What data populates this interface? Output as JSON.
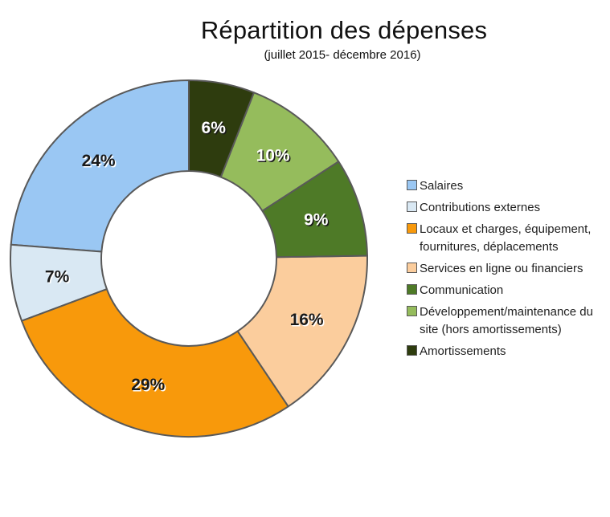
{
  "chart_data": {
    "type": "pie",
    "subtype": "donut",
    "title": "Répartition des dépenses",
    "subtitle": "(juillet 2015- décembre 2016)",
    "unit": "%",
    "direction": "counterclockwise",
    "start_angle_deg": 0,
    "legend_position": "right",
    "grid": false,
    "categories": [
      "Salaires",
      "Contributions externes",
      "Locaux et charges, équipement, fournitures, déplacements",
      "Services en ligne ou financiers",
      "Communication",
      "Développement/maintenance du site (hors amortissements)",
      "Amortissements"
    ],
    "values": [
      24,
      7,
      29,
      16,
      9,
      10,
      6
    ],
    "labels": [
      "24%",
      "7%",
      "29%",
      "16%",
      "9%",
      "10%",
      "6%"
    ],
    "slice_colors": [
      "#9AC7F3",
      "#D9E8F3",
      "#F8990B",
      "#FBCD9D",
      "#4E7A27",
      "#95BC5C",
      "#2E3C0E"
    ],
    "label_colors": [
      "#1a1a1a",
      "#1a1a1a",
      "#1a1a1a",
      "#1a1a1a",
      "#ffffff",
      "#ffffff",
      "#ffffff"
    ],
    "label_shadow_colors": [
      "#ffffff",
      "#ffffff",
      "#ffffff",
      "#ffffff",
      "#1a1a1a",
      "#1a1a1a",
      "#1a1a1a"
    ],
    "stroke_color": "#595959",
    "hole_fill": "#ffffff",
    "background_color": "#ffffff"
  }
}
